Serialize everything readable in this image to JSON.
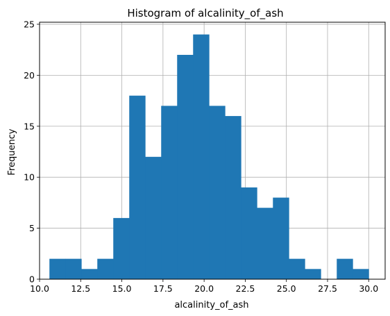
{
  "chart_data": {
    "type": "bar",
    "title": "Histogram of alcalinity_of_ash",
    "xlabel": "alcalinity_of_ash",
    "ylabel": "Frequency",
    "xlim": [
      10.0,
      31.0
    ],
    "ylim": [
      0,
      25.2
    ],
    "grid": true,
    "bar_color": "#1f77b4",
    "x_ticks": [
      10.0,
      12.5,
      15.0,
      17.5,
      20.0,
      22.5,
      25.0,
      27.5,
      30.0
    ],
    "x_tick_labels": [
      "10.0",
      "12.5",
      "15.0",
      "17.5",
      "20.0",
      "22.5",
      "25.0",
      "27.5",
      "30.0"
    ],
    "y_ticks": [
      0,
      5,
      10,
      15,
      20,
      25
    ],
    "y_tick_labels": [
      "0",
      "5",
      "10",
      "15",
      "20",
      "25"
    ],
    "bin_edges": [
      10.6,
      11.57,
      12.54,
      13.51,
      14.48,
      15.45,
      16.42,
      17.39,
      18.36,
      19.33,
      20.3,
      21.27,
      22.24,
      23.21,
      24.18,
      25.15,
      26.12,
      27.09,
      28.06,
      29.03,
      30.0
    ],
    "values": [
      2,
      2,
      1,
      2,
      6,
      18,
      12,
      17,
      22,
      24,
      17,
      16,
      9,
      7,
      8,
      2,
      1,
      0,
      2,
      1
    ]
  }
}
